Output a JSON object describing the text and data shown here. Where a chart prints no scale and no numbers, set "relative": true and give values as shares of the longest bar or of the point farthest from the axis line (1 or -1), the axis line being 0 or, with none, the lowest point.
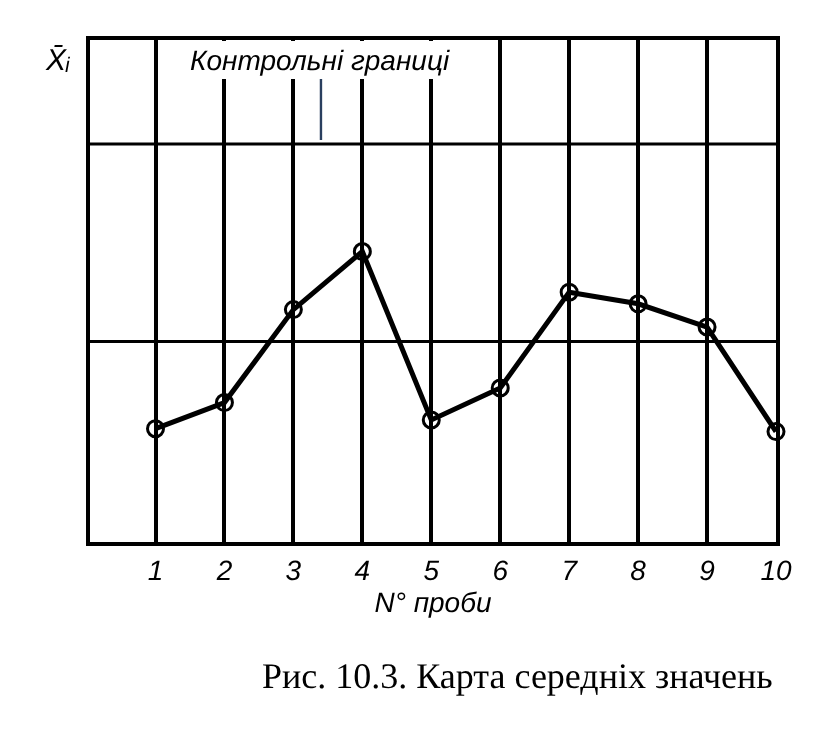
{
  "chart_data": {
    "type": "line",
    "relative": true,
    "categories": [
      "1",
      "2",
      "3",
      "4",
      "5",
      "6",
      "7",
      "8",
      "9",
      "10"
    ],
    "values": [
      0.39,
      0.48,
      0.8,
      1,
      0.42,
      0.53,
      0.86,
      0.82,
      0.74,
      0.38
    ],
    "color": "#000000",
    "marker": "circle",
    "line_style": "solid",
    "grid": "x",
    "xlabel": "N° проби",
    "ref_lines": [
      {
        "axis": "y",
        "value": 1.37,
        "color": "#000000"
      },
      {
        "axis": "y",
        "value": 0.69,
        "color": "#000000"
      }
    ],
    "annotations": [
      {
        "text": "Контрольні границі",
        "x": "4",
        "y": 1.37
      },
      "X̄ᵢ",
      "Рис. 10.3. Карта середніх значень"
    ]
  }
}
